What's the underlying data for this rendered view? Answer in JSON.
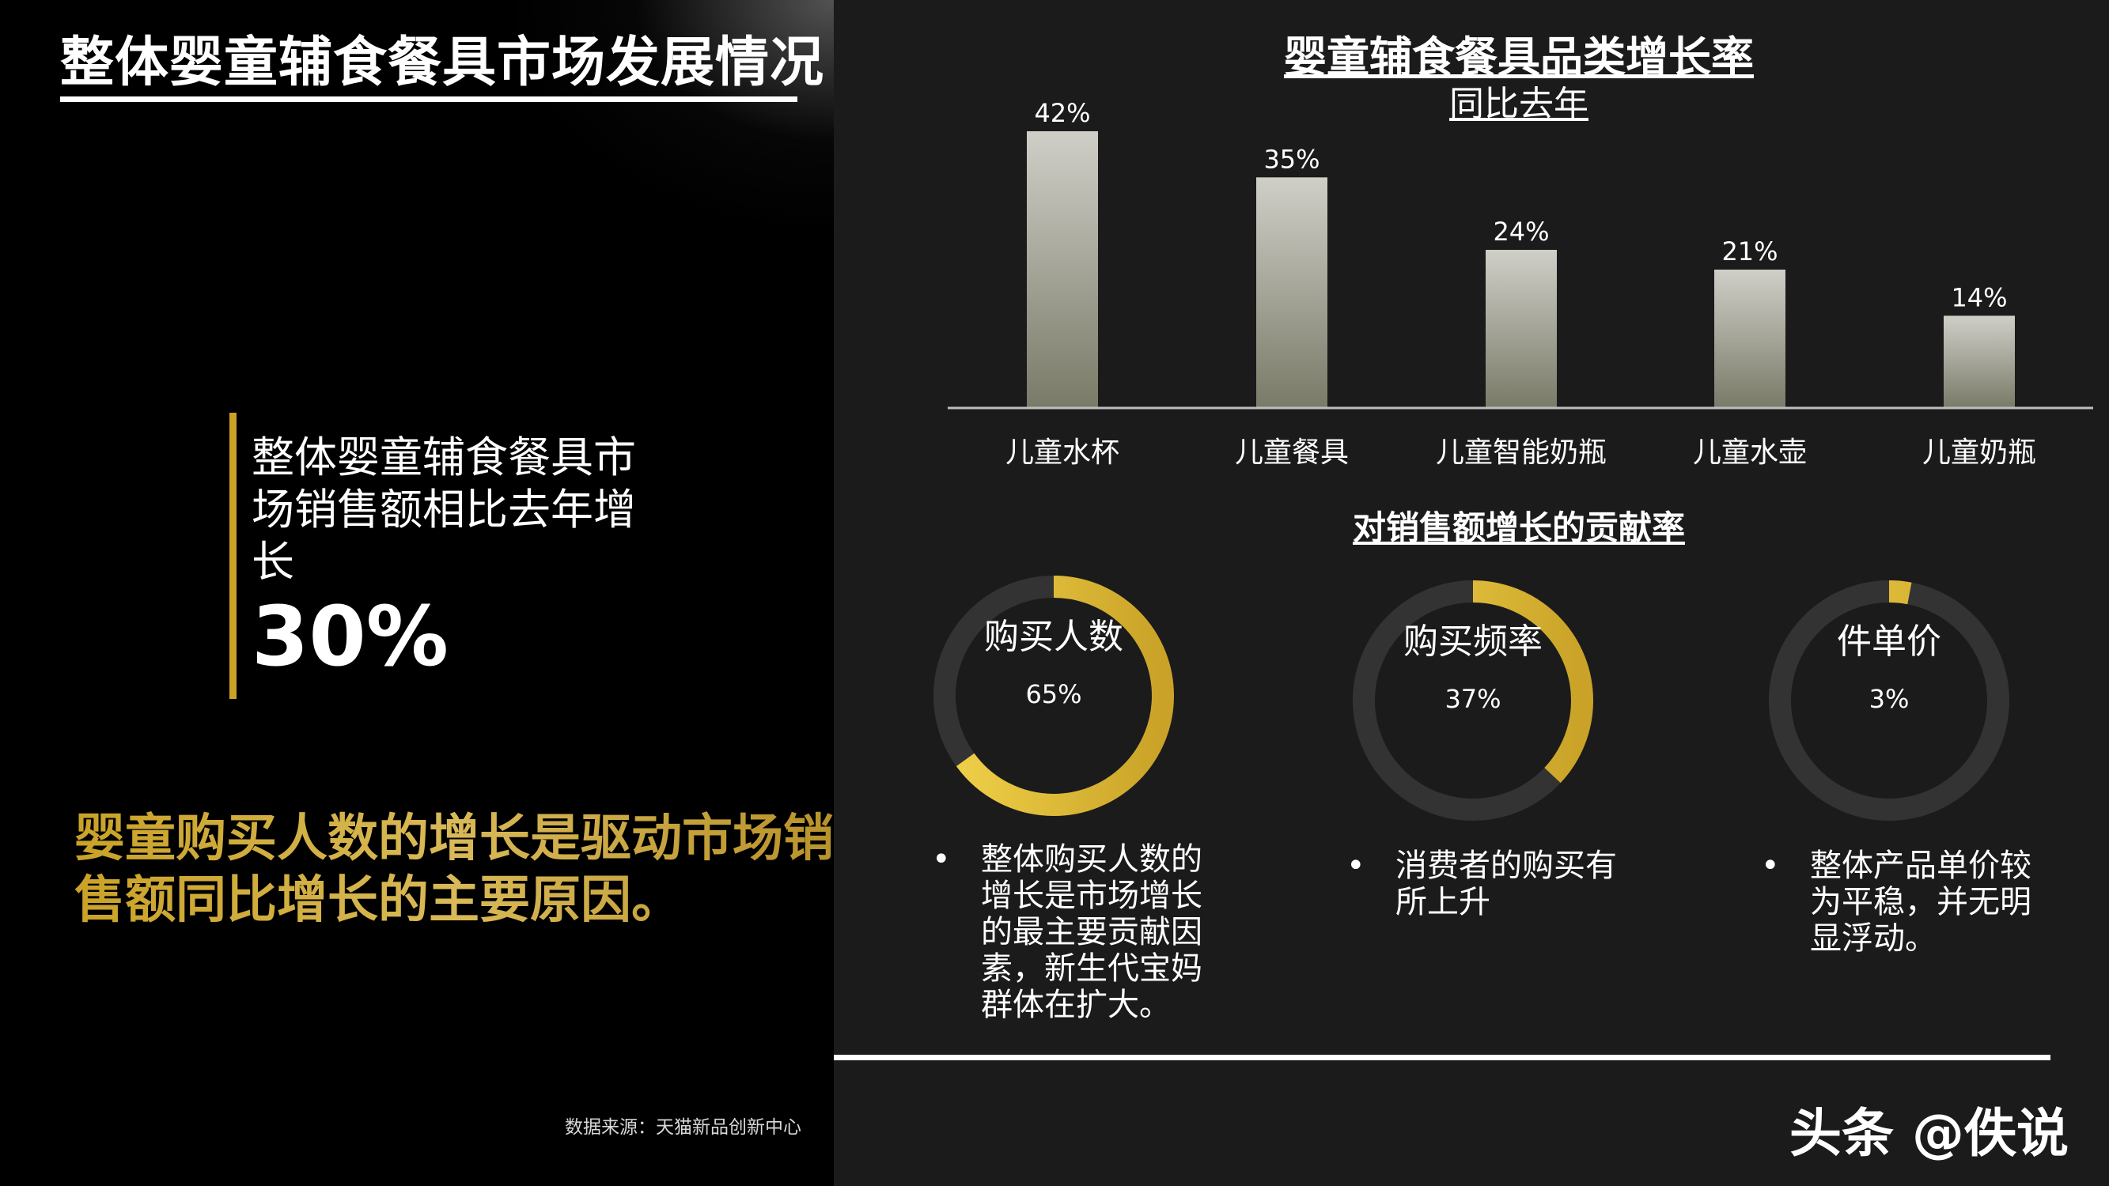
{
  "left": {
    "title": "整体婴童辅食餐具市场发展情况",
    "highlight_text": "整体婴童辅食餐具市场销售额相比去年增长",
    "highlight_value": "30%",
    "conclusion": "婴童购买人数的增长是驱动市场销售额同比增长的主要原因。",
    "source": "数据来源：天猫新品创新中心"
  },
  "chart_data": [
    {
      "type": "bar",
      "title": "婴童辅食餐具品类增长率",
      "subtitle": "同比去年",
      "categories": [
        "儿童水杯",
        "儿童餐具",
        "儿童智能奶瓶",
        "儿童水壶",
        "儿童奶瓶"
      ],
      "values": [
        42,
        35,
        24,
        21,
        14
      ],
      "value_labels": [
        "42%",
        "35%",
        "24%",
        "21%",
        "14%"
      ],
      "ylim": [
        0,
        42
      ]
    },
    {
      "type": "pie",
      "title": "对销售额增长的贡献率",
      "items": [
        {
          "label": "购买人数",
          "value": 65,
          "value_label": "65%",
          "note": "整体购买人数的增长是市场增长的最主要贡献因素，新生代宝妈群体在扩大。"
        },
        {
          "label": "购买频率",
          "value": 37,
          "value_label": "37%",
          "note": "消费者的购买有所上升"
        },
        {
          "label": "件单价",
          "value": 3,
          "value_label": "3%",
          "note": "整体产品单价较为平稳，并无明显浮动。"
        }
      ]
    }
  ],
  "colors": {
    "accent_gold": "#c9a227",
    "ring_track": "#333333",
    "bar_top": "#cfcfc8",
    "bar_bottom": "#7a7a68"
  },
  "bullet_symbol": "•",
  "watermark": "头条 @佚说"
}
